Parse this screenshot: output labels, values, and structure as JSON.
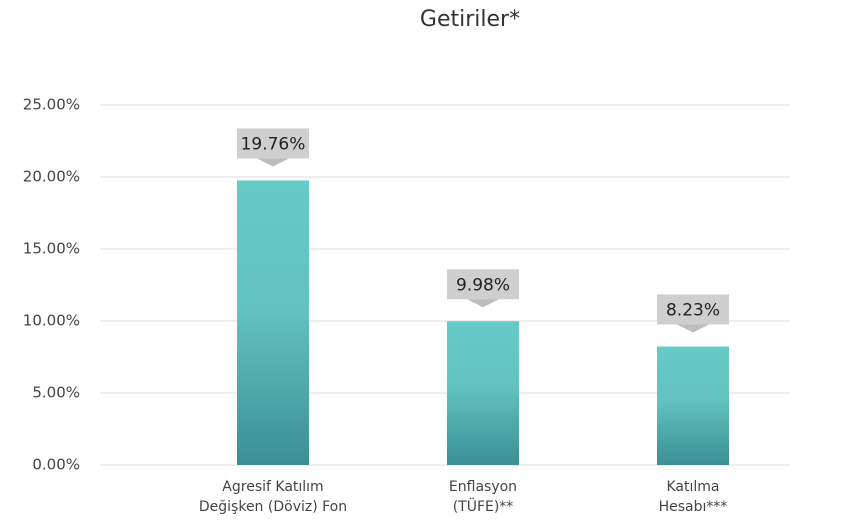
{
  "chart_data": {
    "type": "bar",
    "title": "Getiriler*",
    "categories": [
      "Agresif Katılım\nDeğişken (Döviz) Fon",
      "Enflasyon\n(TÜFE)**",
      "Katılma\nHesabı***"
    ],
    "values": [
      19.76,
      9.98,
      8.23
    ],
    "value_labels": [
      "19.76%",
      "9.98%",
      "8.23%"
    ],
    "color": "#5fc4c1",
    "ylim": [
      0,
      25
    ],
    "yticks": [
      {
        "value": 0,
        "label": "0.00%"
      },
      {
        "value": 5,
        "label": "5.00%"
      },
      {
        "value": 10,
        "label": "10.00%"
      },
      {
        "value": 15,
        "label": "15.00%"
      },
      {
        "value": 20,
        "label": "20.00%"
      },
      {
        "value": 25,
        "label": "25.00%"
      }
    ],
    "grid": true
  }
}
